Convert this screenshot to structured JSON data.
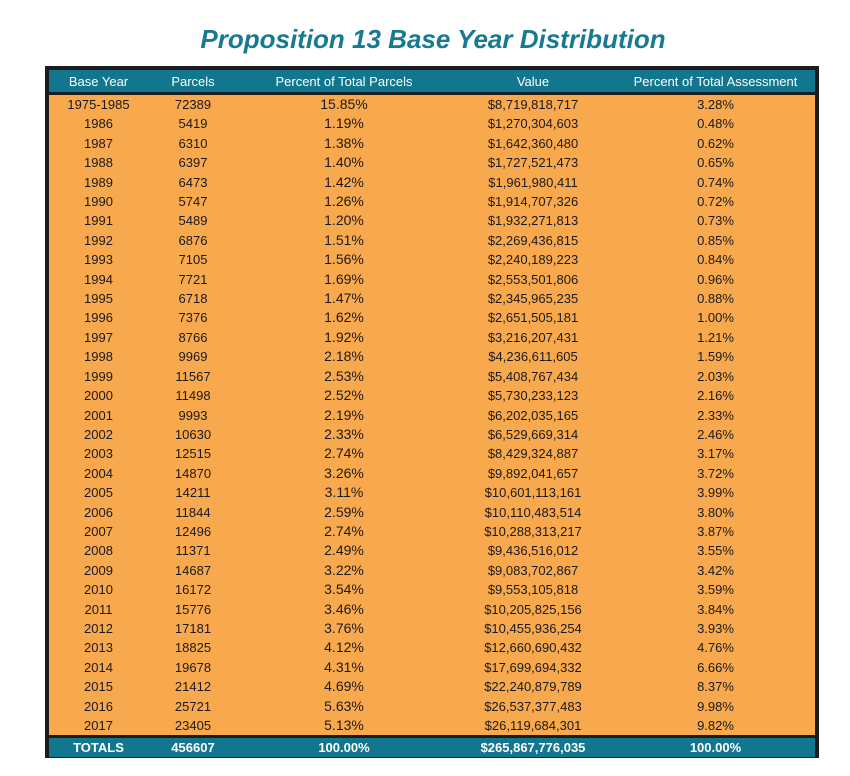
{
  "title": "Proposition 13 Base Year Distribution",
  "columns": [
    "Base Year",
    "Parcels",
    "Percent of Total Parcels",
    "Value",
    "Percent of Total Assessment"
  ],
  "rows": [
    [
      "1975-1985",
      "72389",
      "15.85%",
      "$8,719,818,717",
      "3.28%"
    ],
    [
      "1986",
      "5419",
      "1.19%",
      "$1,270,304,603",
      "0.48%"
    ],
    [
      "1987",
      "6310",
      "1.38%",
      "$1,642,360,480",
      "0.62%"
    ],
    [
      "1988",
      "6397",
      "1.40%",
      "$1,727,521,473",
      "0.65%"
    ],
    [
      "1989",
      "6473",
      "1.42%",
      "$1,961,980,411",
      "0.74%"
    ],
    [
      "1990",
      "5747",
      "1.26%",
      "$1,914,707,326",
      "0.72%"
    ],
    [
      "1991",
      "5489",
      "1.20%",
      "$1,932,271,813",
      "0.73%"
    ],
    [
      "1992",
      "6876",
      "1.51%",
      "$2,269,436,815",
      "0.85%"
    ],
    [
      "1993",
      "7105",
      "1.56%",
      "$2,240,189,223",
      "0.84%"
    ],
    [
      "1994",
      "7721",
      "1.69%",
      "$2,553,501,806",
      "0.96%"
    ],
    [
      "1995",
      "6718",
      "1.47%",
      "$2,345,965,235",
      "0.88%"
    ],
    [
      "1996",
      "7376",
      "1.62%",
      "$2,651,505,181",
      "1.00%"
    ],
    [
      "1997",
      "8766",
      "1.92%",
      "$3,216,207,431",
      "1.21%"
    ],
    [
      "1998",
      "9969",
      "2.18%",
      "$4,236,611,605",
      "1.59%"
    ],
    [
      "1999",
      "11567",
      "2.53%",
      "$5,408,767,434",
      "2.03%"
    ],
    [
      "2000",
      "11498",
      "2.52%",
      "$5,730,233,123",
      "2.16%"
    ],
    [
      "2001",
      "9993",
      "2.19%",
      "$6,202,035,165",
      "2.33%"
    ],
    [
      "2002",
      "10630",
      "2.33%",
      "$6,529,669,314",
      "2.46%"
    ],
    [
      "2003",
      "12515",
      "2.74%",
      "$8,429,324,887",
      "3.17%"
    ],
    [
      "2004",
      "14870",
      "3.26%",
      "$9,892,041,657",
      "3.72%"
    ],
    [
      "2005",
      "14211",
      "3.11%",
      "$10,601,113,161",
      "3.99%"
    ],
    [
      "2006",
      "11844",
      "2.59%",
      "$10,110,483,514",
      "3.80%"
    ],
    [
      "2007",
      "12496",
      "2.74%",
      "$10,288,313,217",
      "3.87%"
    ],
    [
      "2008",
      "11371",
      "2.49%",
      "$9,436,516,012",
      "3.55%"
    ],
    [
      "2009",
      "14687",
      "3.22%",
      "$9,083,702,867",
      "3.42%"
    ],
    [
      "2010",
      "16172",
      "3.54%",
      "$9,553,105,818",
      "3.59%"
    ],
    [
      "2011",
      "15776",
      "3.46%",
      "$10,205,825,156",
      "3.84%"
    ],
    [
      "2012",
      "17181",
      "3.76%",
      "$10,455,936,254",
      "3.93%"
    ],
    [
      "2013",
      "18825",
      "4.12%",
      "$12,660,690,432",
      "4.76%"
    ],
    [
      "2014",
      "19678",
      "4.31%",
      "$17,699,694,332",
      "6.66%"
    ],
    [
      "2015",
      "21412",
      "4.69%",
      "$22,240,879,789",
      "8.37%"
    ],
    [
      "2016",
      "25721",
      "5.63%",
      "$26,537,377,483",
      "9.98%"
    ],
    [
      "2017",
      "23405",
      "5.13%",
      "$26,119,684,301",
      "9.82%"
    ]
  ],
  "totals": [
    "TOTALS",
    "456607",
    "100.00%",
    "$265,867,776,035",
    "100.00%"
  ],
  "colors": {
    "title": "#177a90",
    "header_bg": "#12778e",
    "body_bg": "#f8a94d",
    "frame": "#1c1c1c"
  }
}
